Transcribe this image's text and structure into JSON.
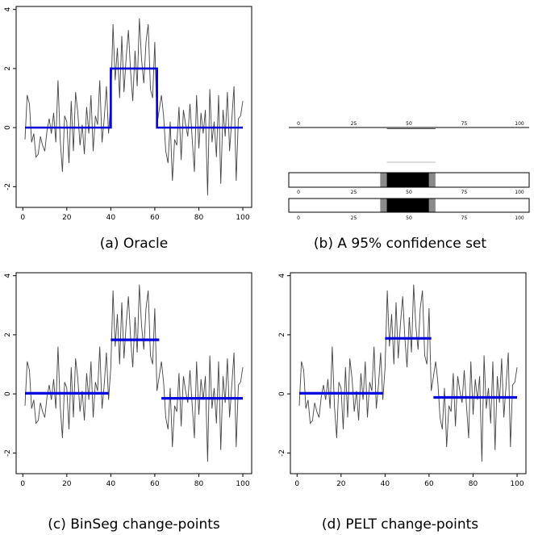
{
  "panels": [
    {
      "caption": "(a) Oracle",
      "xticks": [
        0,
        20,
        40,
        60,
        80,
        100
      ],
      "yticks": [
        -2,
        0,
        2,
        4
      ],
      "segments": [
        {
          "x0": 1,
          "x1": 40,
          "y": 0
        },
        {
          "x0": 40,
          "x1": 61,
          "y": 2
        },
        {
          "x0": 61,
          "x1": 100,
          "y": 0
        }
      ],
      "steps": true
    },
    {
      "caption": "(b) A 95% confidence set",
      "ticks": [
        0,
        25,
        50,
        75,
        100
      ],
      "interval": [
        40,
        62
      ],
      "shaded_core": [
        40,
        59
      ],
      "shaded_outer": [
        37,
        62
      ]
    },
    {
      "caption": "(c) BinSeg change-points",
      "xticks": [
        0,
        20,
        40,
        60,
        80,
        100
      ],
      "yticks": [
        -2,
        0,
        2,
        4
      ],
      "segments": [
        {
          "x0": 1,
          "x1": 39,
          "y": 0.02
        },
        {
          "x0": 40,
          "x1": 62,
          "y": 1.83
        },
        {
          "x0": 63,
          "x1": 100,
          "y": -0.15
        }
      ],
      "steps": false
    },
    {
      "caption": "(d) PELT change-points",
      "xticks": [
        0,
        20,
        40,
        60,
        80,
        100
      ],
      "yticks": [
        -2,
        0,
        2,
        4
      ],
      "segments": [
        {
          "x0": 1,
          "x1": 39,
          "y": 0.02
        },
        {
          "x0": 40,
          "x1": 61,
          "y": 1.88
        },
        {
          "x0": 62,
          "x1": 100,
          "y": -0.12
        }
      ],
      "steps": false
    }
  ],
  "chart_data": {
    "type": "line",
    "xlim": [
      1,
      100
    ],
    "ylim": [
      -2.4,
      3.8
    ],
    "series": [
      {
        "values": [
          -0.4,
          1.1,
          0.8,
          -0.5,
          -0.2,
          -1.0,
          -0.9,
          -0.3,
          -0.6,
          -0.8,
          -0.1,
          0.3,
          -0.2,
          0.5,
          -0.5,
          1.6,
          -0.4,
          -1.5,
          0.4,
          0.2,
          -1.2,
          0.9,
          -0.8,
          1.2,
          0.5,
          -0.6,
          0.1,
          -0.9,
          0.7,
          -0.2,
          1.1,
          -0.8,
          0.4,
          0.1,
          1.6,
          -0.5,
          0.3,
          1.4,
          -0.2,
          0.9,
          3.5,
          1.6,
          2.7,
          1.0,
          3.1,
          1.2,
          2.4,
          3.3,
          1.9,
          0.9,
          2.6,
          1.4,
          3.7,
          2.3,
          1.5,
          2.9,
          3.5,
          1.3,
          1.0,
          2.9,
          0.1,
          0.6,
          1.1,
          0.4,
          -0.8,
          -1.2,
          0.2,
          -1.8,
          -0.4,
          -0.6,
          0.7,
          -1.1,
          0.6,
          0.1,
          -0.3,
          0.8,
          -0.4,
          -1.5,
          1.1,
          -0.7,
          0.5,
          -0.2,
          0.6,
          -2.3,
          1.3,
          -0.5,
          0.2,
          -1.0,
          1.1,
          -1.9,
          0.6,
          -0.3,
          1.2,
          -0.8,
          0.3,
          1.4,
          -1.8,
          0.3,
          0.4,
          0.9
        ]
      }
    ]
  },
  "colors": {
    "fit": "#0000dd",
    "series": "#444444",
    "shade_core": "#000000",
    "shade_outer": "#8a8a8a"
  }
}
